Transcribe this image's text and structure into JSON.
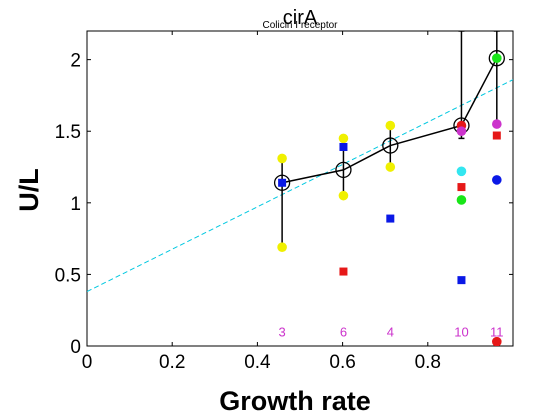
{
  "chart_data": {
    "type": "scatter",
    "title": "cirA",
    "subtitle": "Colicin I receptor",
    "xlabel": "Growth rate",
    "ylabel": "U/L",
    "xlim": [
      0,
      1.0
    ],
    "ylim": [
      0,
      2.2
    ],
    "x_ticks": [
      0,
      0.2,
      0.4,
      0.6,
      0.8
    ],
    "x_tick_labels": [
      "0",
      "0.2",
      "0.4",
      "0.6",
      "0.8"
    ],
    "y_ticks": [
      0,
      0.5,
      1,
      1.5,
      2
    ],
    "y_tick_labels": [
      "0",
      "0.5",
      "1",
      "1.5",
      "2"
    ],
    "grid": false,
    "colors": {
      "mean_line": "#000000",
      "fit_line": "#00c8e0",
      "yellow": "#f0f000",
      "blue": "#0a18e6",
      "red": "#e61818",
      "magenta": "#cc33cc",
      "cyan": "#33e6f0",
      "green": "#18e618",
      "annot": "#cc33cc"
    },
    "mean_series": {
      "x": [
        0.458,
        0.602,
        0.712,
        0.879,
        0.962
      ],
      "y": [
        1.14,
        1.23,
        1.4,
        1.54,
        2.01
      ],
      "err_low": [
        0.69,
        1.05,
        1.25,
        1.45,
        1.56
      ],
      "err_high": [
        1.31,
        1.45,
        1.54,
        2.2,
        2.2
      ]
    },
    "fit_line": {
      "x": [
        0,
        1.0
      ],
      "y": [
        0.38,
        1.86
      ]
    },
    "points": [
      {
        "x": 0.458,
        "y": 1.31,
        "color": "yellow",
        "shape": "circle"
      },
      {
        "x": 0.458,
        "y": 0.69,
        "color": "yellow",
        "shape": "circle"
      },
      {
        "x": 0.458,
        "y": 1.14,
        "color": "blue",
        "shape": "square"
      },
      {
        "x": 0.602,
        "y": 1.45,
        "color": "yellow",
        "shape": "circle"
      },
      {
        "x": 0.602,
        "y": 1.05,
        "color": "yellow",
        "shape": "circle"
      },
      {
        "x": 0.602,
        "y": 1.39,
        "color": "blue",
        "shape": "square"
      },
      {
        "x": 0.602,
        "y": 0.52,
        "color": "red",
        "shape": "square"
      },
      {
        "x": 0.712,
        "y": 1.54,
        "color": "yellow",
        "shape": "circle"
      },
      {
        "x": 0.712,
        "y": 1.25,
        "color": "yellow",
        "shape": "circle"
      },
      {
        "x": 0.712,
        "y": 0.89,
        "color": "blue",
        "shape": "square"
      },
      {
        "x": 0.879,
        "y": 1.54,
        "color": "red",
        "shape": "circle"
      },
      {
        "x": 0.879,
        "y": 1.5,
        "color": "magenta",
        "shape": "circle"
      },
      {
        "x": 0.879,
        "y": 1.22,
        "color": "cyan",
        "shape": "circle"
      },
      {
        "x": 0.879,
        "y": 1.11,
        "color": "red",
        "shape": "square"
      },
      {
        "x": 0.879,
        "y": 1.02,
        "color": "green",
        "shape": "circle"
      },
      {
        "x": 0.879,
        "y": 0.46,
        "color": "blue",
        "shape": "square"
      },
      {
        "x": 0.962,
        "y": 2.01,
        "color": "green",
        "shape": "circle"
      },
      {
        "x": 0.962,
        "y": 1.55,
        "color": "magenta",
        "shape": "circle"
      },
      {
        "x": 0.962,
        "y": 1.47,
        "color": "red",
        "shape": "square"
      },
      {
        "x": 0.962,
        "y": 1.16,
        "color": "blue",
        "shape": "circle"
      },
      {
        "x": 0.962,
        "y": 0.03,
        "color": "red",
        "shape": "circle"
      }
    ],
    "annotations": [
      {
        "x": 0.458,
        "y": 0.1,
        "text": "3"
      },
      {
        "x": 0.602,
        "y": 0.1,
        "text": "6"
      },
      {
        "x": 0.712,
        "y": 0.1,
        "text": "4"
      },
      {
        "x": 0.879,
        "y": 0.1,
        "text": "10"
      },
      {
        "x": 0.962,
        "y": 0.1,
        "text": "11"
      }
    ]
  }
}
